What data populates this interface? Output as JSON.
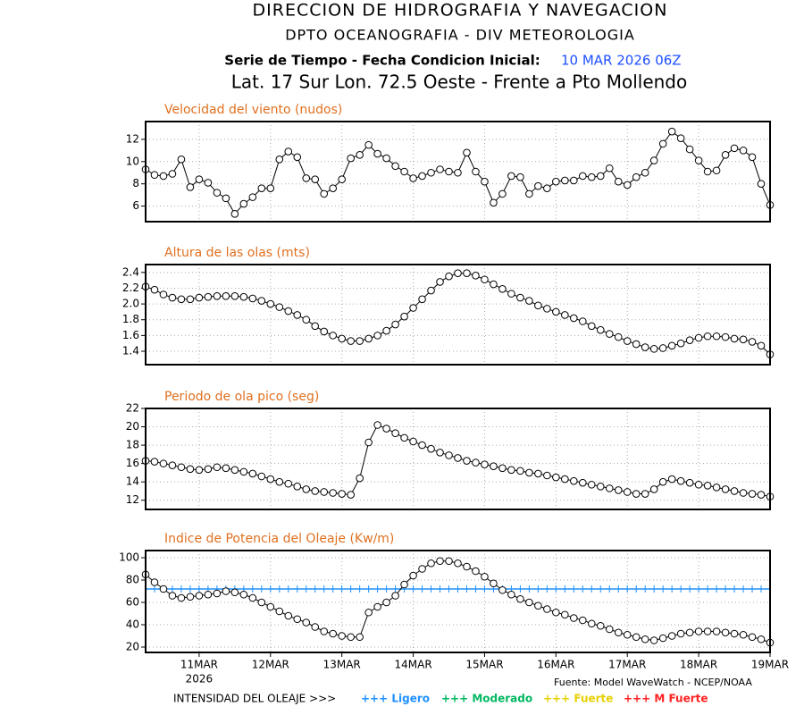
{
  "header": {
    "title": "DIRECCION DE HIDROGRAFIA Y NAVEGACION",
    "subtitle": "DPTO OCEANOGRAFIA - DIV METEOROLOGIA",
    "run_label": "Serie de Tiempo - Fecha Condicion Inicial:",
    "run_date": "10 MAR 2026 06Z",
    "location": "Lat. 17 Sur  Lon. 72.5 Oeste - Frente a Pto Mollendo"
  },
  "chart_data": [
    {
      "type": "line",
      "title": "Velocidad del viento (nudos)",
      "color": "#000000",
      "grid": true,
      "ylim": [
        4.6,
        13.6
      ],
      "yticks": [
        6,
        8,
        10,
        12
      ],
      "values": [
        9.3,
        8.8,
        8.7,
        8.9,
        10.2,
        7.7,
        8.4,
        8.1,
        7.2,
        6.7,
        5.3,
        6.2,
        6.8,
        7.6,
        7.6,
        10.2,
        10.9,
        10.4,
        8.5,
        8.4,
        7.1,
        7.6,
        8.4,
        10.3,
        10.6,
        11.5,
        10.7,
        10.3,
        9.6,
        9.1,
        8.5,
        8.7,
        9.0,
        9.3,
        9.1,
        9.0,
        10.8,
        9.1,
        8.2,
        6.3,
        7.1,
        8.7,
        8.6,
        7.1,
        7.8,
        7.6,
        8.2,
        8.3,
        8.3,
        8.7,
        8.6,
        8.7,
        9.4,
        8.2,
        7.9,
        8.6,
        9.0,
        10.1,
        11.6,
        12.7,
        12.1,
        11.1,
        10.1,
        9.1,
        9.2,
        10.6,
        11.2,
        11.0,
        10.4,
        8.0,
        6.1
      ]
    },
    {
      "type": "line",
      "title": "Altura de las olas (mts)",
      "color": "#000000",
      "grid": true,
      "ylim": [
        1.23,
        2.5
      ],
      "yticks": [
        1.4,
        1.6,
        1.8,
        {
          "value": 2,
          "label": "2.0"
        },
        2.2,
        2.4
      ],
      "values": [
        2.22,
        2.18,
        2.12,
        2.08,
        2.06,
        2.06,
        2.08,
        2.09,
        2.1,
        2.1,
        2.1,
        2.09,
        2.07,
        2.04,
        2.0,
        1.96,
        1.91,
        1.86,
        1.8,
        1.72,
        1.65,
        1.6,
        1.56,
        1.53,
        1.53,
        1.56,
        1.6,
        1.66,
        1.74,
        1.84,
        1.95,
        2.06,
        2.17,
        2.28,
        2.35,
        2.39,
        2.39,
        2.36,
        2.31,
        2.25,
        2.19,
        2.13,
        2.08,
        2.04,
        1.98,
        1.94,
        1.9,
        1.86,
        1.82,
        1.78,
        1.72,
        1.67,
        1.62,
        1.58,
        1.53,
        1.49,
        1.45,
        1.43,
        1.44,
        1.47,
        1.5,
        1.54,
        1.57,
        1.59,
        1.59,
        1.58,
        1.56,
        1.55,
        1.52,
        1.47,
        1.36
      ]
    },
    {
      "type": "line",
      "title": "Periodo de ola pico (seg)",
      "color": "#000000",
      "grid": true,
      "ylim": [
        11,
        22
      ],
      "yticks": [
        12,
        14,
        16,
        18,
        20,
        22
      ],
      "values": [
        16.3,
        16.2,
        16.0,
        15.8,
        15.6,
        15.4,
        15.3,
        15.4,
        15.6,
        15.5,
        15.3,
        15.1,
        14.9,
        14.6,
        14.3,
        14.0,
        13.8,
        13.5,
        13.2,
        13.0,
        12.9,
        12.8,
        12.7,
        12.6,
        14.4,
        18.3,
        20.2,
        19.8,
        19.3,
        18.8,
        18.4,
        18.0,
        17.6,
        17.2,
        16.9,
        16.6,
        16.3,
        16.1,
        15.9,
        15.7,
        15.5,
        15.3,
        15.2,
        15.0,
        14.9,
        14.7,
        14.5,
        14.3,
        14.1,
        13.9,
        13.7,
        13.5,
        13.3,
        13.1,
        12.9,
        12.7,
        12.7,
        13.2,
        14.0,
        14.3,
        14.1,
        13.9,
        13.7,
        13.6,
        13.4,
        13.2,
        13.0,
        12.8,
        12.7,
        12.6,
        12.4
      ]
    },
    {
      "type": "line",
      "title": "Indice de Potencia del Oleaje (Kw/m)",
      "color": "#000000",
      "grid": true,
      "ylim": [
        15.2,
        106.4
      ],
      "yticks": [
        20,
        40,
        60,
        80,
        100
      ],
      "reference_line": {
        "value": 72,
        "color": "#1e90ff"
      },
      "categories": [
        null,
        null,
        null,
        null,
        null,
        null,
        "11MAR",
        null,
        null,
        null,
        null,
        null,
        null,
        null,
        "12MAR",
        null,
        null,
        null,
        null,
        null,
        null,
        null,
        "13MAR",
        null,
        null,
        null,
        null,
        null,
        null,
        null,
        "14MAR",
        null,
        null,
        null,
        null,
        null,
        null,
        null,
        "15MAR",
        null,
        null,
        null,
        null,
        null,
        null,
        null,
        "16MAR",
        null,
        null,
        null,
        null,
        null,
        null,
        null,
        "17MAR",
        null,
        null,
        null,
        null,
        null,
        null,
        null,
        "18MAR",
        null,
        null,
        null,
        null,
        null,
        null,
        null,
        "19MAR"
      ],
      "x_sublabel": "2026",
      "values": [
        85,
        78,
        72,
        66,
        64,
        65,
        66,
        67,
        68,
        70,
        69,
        67,
        64,
        60,
        56,
        52,
        48,
        45,
        42,
        38,
        34,
        32,
        30,
        29,
        29,
        51,
        56,
        60,
        66,
        76,
        84,
        90,
        95,
        97,
        97,
        95,
        92,
        88,
        83,
        77,
        71,
        67,
        63,
        60,
        57,
        54,
        51,
        49,
        46,
        44,
        41,
        39,
        36,
        33,
        31,
        29,
        27,
        26,
        28,
        30,
        32,
        33,
        34,
        34,
        34,
        33,
        32,
        31,
        29,
        27,
        24
      ]
    }
  ],
  "footer": {
    "source": "Fuente: Model WaveWatch - NCEP/NOAA",
    "legend_title": "INTENSIDAD DEL OLEAJE >>>",
    "legend": [
      {
        "label": "+++ Ligero",
        "color": "#1e90ff"
      },
      {
        "label": "+++ Moderado",
        "color": "#00b860"
      },
      {
        "label": "+++ Fuerte",
        "color": "#e6d000"
      },
      {
        "label": "+++ M Fuerte",
        "color": "#ff2020"
      }
    ]
  }
}
